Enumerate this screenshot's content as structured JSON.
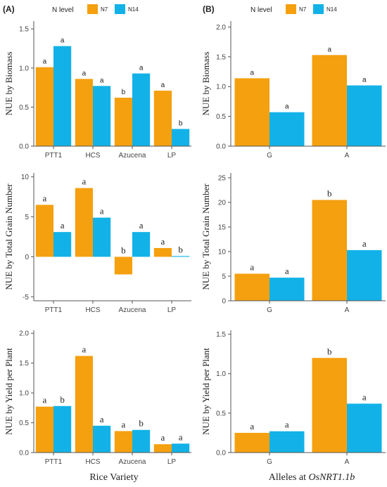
{
  "colors": {
    "N7": "#f5a00f",
    "N14": "#12b2e8",
    "axis": "#555555",
    "text": "#222222"
  },
  "panel_letters": [
    "(A)",
    "(B)"
  ],
  "legend": {
    "title": "N level",
    "keys": [
      "N7",
      "N14"
    ]
  },
  "axis_titles": {
    "x_left": "Rice Variety",
    "x_right_prefix": "Alleles at ",
    "x_right_gene": "OsNRT1.1b"
  },
  "chart_data": [
    {
      "type": "bar",
      "panel": "A",
      "row": 0,
      "ylabel": "NUE by Biomass",
      "xlabel": "",
      "categories": [
        "PTT1",
        "HCS",
        "Azucena",
        "LP"
      ],
      "ylim": [
        0,
        1.6
      ],
      "yticks": [
        0.0,
        0.5,
        1.0,
        1.5
      ],
      "tick_decimals": 1,
      "series": [
        {
          "name": "N7",
          "values": [
            1.01,
            0.86,
            0.62,
            0.71
          ],
          "labels": [
            "a",
            "a",
            "b",
            "a"
          ]
        },
        {
          "name": "N14",
          "values": [
            1.28,
            0.77,
            0.93,
            0.22
          ],
          "labels": [
            "a",
            "a",
            "a",
            "b"
          ]
        }
      ]
    },
    {
      "type": "bar",
      "panel": "A",
      "row": 1,
      "ylabel": "NUE by Total Grain Number",
      "xlabel": "",
      "categories": [
        "PTT1",
        "HCS",
        "Azucena",
        "LP"
      ],
      "ylim": [
        -5.5,
        10.5
      ],
      "yticks": [
        -5,
        0,
        5,
        10
      ],
      "tick_decimals": 0,
      "series": [
        {
          "name": "N7",
          "values": [
            6.5,
            8.6,
            -2.2,
            1.1
          ],
          "labels": [
            "a",
            "a",
            "b",
            "a"
          ]
        },
        {
          "name": "N14",
          "values": [
            3.1,
            4.9,
            3.1,
            0.1
          ],
          "labels": [
            "a",
            "a",
            "a",
            "b"
          ]
        }
      ]
    },
    {
      "type": "bar",
      "panel": "A",
      "row": 2,
      "ylabel": "NUE by Yield per Plant",
      "xlabel": "Rice Variety",
      "categories": [
        "PTT1",
        "HCS",
        "Azucena",
        "LP"
      ],
      "ylim": [
        0,
        2.05
      ],
      "yticks": [
        0.0,
        0.5,
        1.0,
        1.5,
        2.0
      ],
      "tick_decimals": 1,
      "series": [
        {
          "name": "N7",
          "values": [
            0.77,
            1.62,
            0.36,
            0.14
          ],
          "labels": [
            "a",
            "a",
            "a",
            "a"
          ]
        },
        {
          "name": "N14",
          "values": [
            0.78,
            0.45,
            0.38,
            0.15
          ],
          "labels": [
            "b",
            "a",
            "b",
            "a"
          ]
        }
      ]
    },
    {
      "type": "bar",
      "panel": "B",
      "row": 0,
      "ylabel": "NUE by Biomass",
      "xlabel": "",
      "categories": [
        "G",
        "A"
      ],
      "ylim": [
        0,
        2.1
      ],
      "yticks": [
        0.0,
        0.5,
        1.0,
        1.5,
        2.0
      ],
      "tick_decimals": 1,
      "series": [
        {
          "name": "N7",
          "values": [
            1.14,
            1.53
          ],
          "labels": [
            "a",
            "a"
          ]
        },
        {
          "name": "N14",
          "values": [
            0.57,
            1.02
          ],
          "labels": [
            "a",
            "a"
          ]
        }
      ]
    },
    {
      "type": "bar",
      "panel": "B",
      "row": 1,
      "ylabel": "NUE by Total Grain Number",
      "xlabel": "",
      "categories": [
        "G",
        "A"
      ],
      "ylim": [
        0,
        26
      ],
      "yticks": [
        0,
        5,
        10,
        15,
        20,
        25
      ],
      "tick_decimals": 0,
      "series": [
        {
          "name": "N7",
          "values": [
            5.5,
            20.5
          ],
          "labels": [
            "a",
            "b"
          ]
        },
        {
          "name": "N14",
          "values": [
            4.7,
            10.3
          ],
          "labels": [
            "a",
            "a"
          ]
        }
      ]
    },
    {
      "type": "bar",
      "panel": "B",
      "row": 2,
      "ylabel": "NUE by Yield per Plant",
      "xlabel": "Alleles at OsNRT1.1b",
      "categories": [
        "G",
        "A"
      ],
      "ylim": [
        0,
        1.55
      ],
      "yticks": [
        0.0,
        0.5,
        1.0,
        1.5
      ],
      "tick_decimals": 1,
      "series": [
        {
          "name": "N7",
          "values": [
            0.25,
            1.2
          ],
          "labels": [
            "a",
            "b"
          ]
        },
        {
          "name": "N14",
          "values": [
            0.27,
            0.62
          ],
          "labels": [
            "a",
            "a"
          ]
        }
      ]
    }
  ]
}
